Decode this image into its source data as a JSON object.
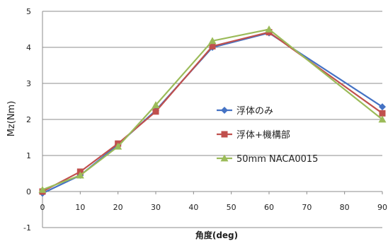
{
  "chart_data": {
    "type": "line",
    "title": "",
    "xlabel": "角度(deg)",
    "ylabel": "Mz(Nm)",
    "xlim": [
      0,
      90
    ],
    "ylim": [
      -1,
      5
    ],
    "x_ticks": [
      "0",
      "10",
      "20",
      "30",
      "40",
      "50",
      "60",
      "70",
      "80",
      "90"
    ],
    "y_ticks": [
      "-1",
      "0",
      "1",
      "2",
      "3",
      "4",
      "5"
    ],
    "grid": true,
    "legend_position": "right-middle",
    "x": [
      0,
      10,
      20,
      30,
      45,
      60,
      90
    ],
    "series": [
      {
        "name": "浮体のみ",
        "values": [
          -0.05,
          0.45,
          1.3,
          2.25,
          4.0,
          4.4,
          2.35
        ],
        "color": "#4472C4",
        "marker": "diamond"
      },
      {
        "name": "浮体+機構部",
        "values": [
          0.0,
          0.55,
          1.33,
          2.22,
          4.03,
          4.42,
          2.17
        ],
        "color": "#C0504D",
        "marker": "square"
      },
      {
        "name": "50mm NACA0015",
        "values": [
          0.05,
          0.45,
          1.25,
          2.4,
          4.18,
          4.5,
          2.0
        ],
        "color": "#9BBB59",
        "marker": "triangle"
      }
    ]
  }
}
